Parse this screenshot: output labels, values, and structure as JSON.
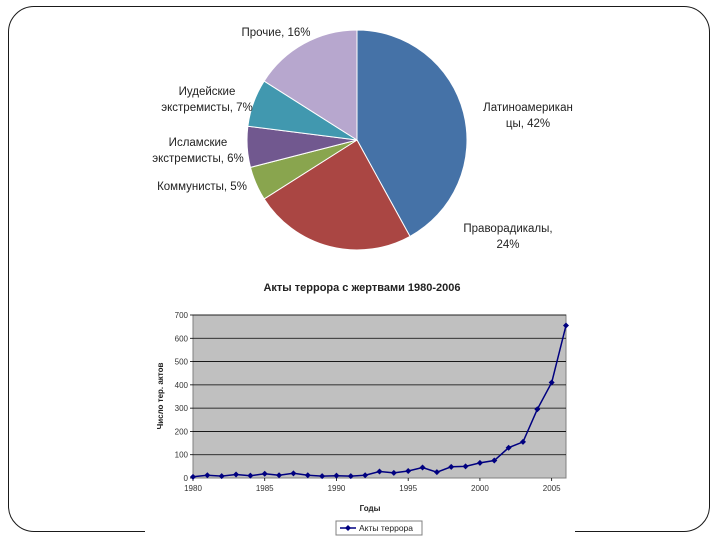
{
  "chart_data": [
    {
      "type": "pie",
      "slices": [
        {
          "label_lines": [
            "Латиноамерикан",
            "цы, 42%"
          ],
          "value": 42,
          "color": "#4572A7"
        },
        {
          "label_lines": [
            "Праворадикалы,",
            "24%"
          ],
          "value": 24,
          "color": "#AA4643"
        },
        {
          "label_lines": [
            "Коммунисты, 5%"
          ],
          "value": 5,
          "color": "#89A54E"
        },
        {
          "label_lines": [
            "Исламские",
            "экстремисты, 6%"
          ],
          "value": 6,
          "color": "#71588F"
        },
        {
          "label_lines": [
            "Иудейские",
            "экстремисты, 7%"
          ],
          "value": 7,
          "color": "#4198AF"
        },
        {
          "label_lines": [
            "Прочие, 16%"
          ],
          "value": 16,
          "color": "#B7A7CE"
        }
      ]
    },
    {
      "type": "line",
      "title": "Акты террора с жертвами 1980-2006",
      "xlabel": "Годы",
      "ylabel": "Число тер. актов",
      "xlim": [
        1980,
        2006
      ],
      "ylim": [
        0,
        700
      ],
      "xticks": [
        1980,
        1985,
        1990,
        1995,
        2000,
        2005
      ],
      "yticks": [
        0,
        100,
        200,
        300,
        400,
        500,
        600,
        700
      ],
      "grid": true,
      "legend_position": "bottom",
      "series": [
        {
          "name": "Акты террора",
          "color": "#000080",
          "x": [
            1980,
            1981,
            1982,
            1983,
            1984,
            1985,
            1986,
            1987,
            1988,
            1989,
            1990,
            1991,
            1992,
            1993,
            1994,
            1995,
            1996,
            1997,
            1998,
            1999,
            2000,
            2001,
            2002,
            2003,
            2004,
            2005,
            2006
          ],
          "y": [
            5,
            12,
            8,
            15,
            10,
            18,
            12,
            20,
            12,
            8,
            10,
            8,
            12,
            28,
            22,
            30,
            45,
            25,
            48,
            50,
            65,
            75,
            130,
            155,
            295,
            410,
            655
          ]
        }
      ]
    }
  ]
}
